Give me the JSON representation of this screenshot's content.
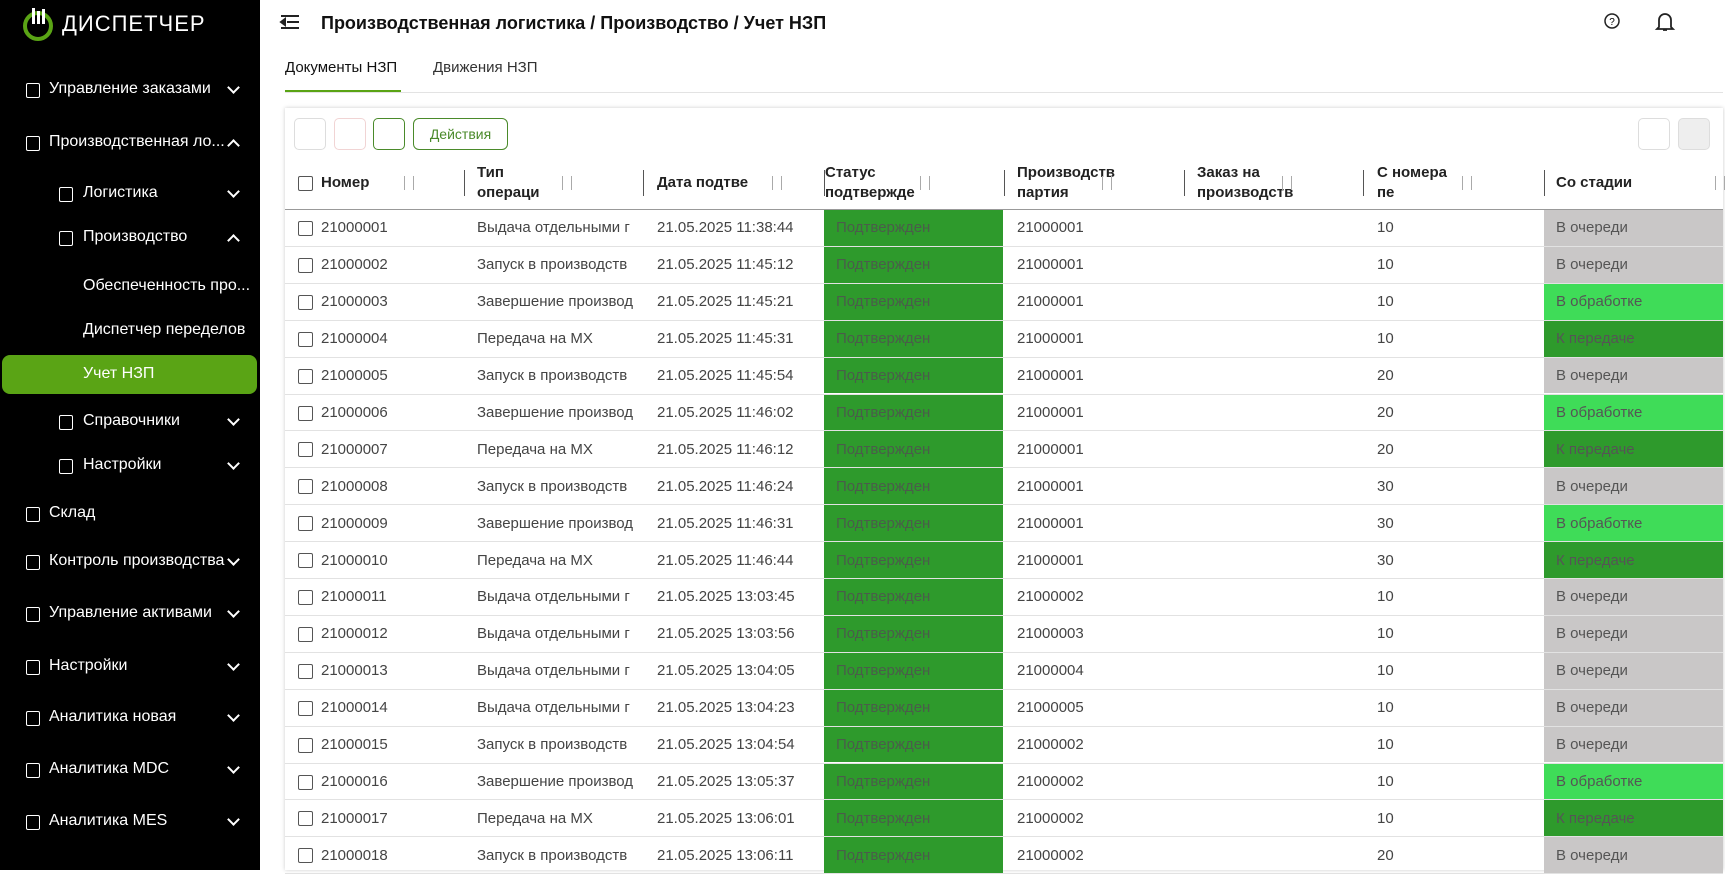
{
  "sidebar": {
    "logo": "ДИСПЕТЧЕР",
    "items": [
      {
        "label": "Управление заказами"
      },
      {
        "label": "Производственная ло..."
      },
      {
        "label": "Логистика"
      },
      {
        "label": "Производство"
      },
      {
        "label": "Обеспеченность про..."
      },
      {
        "label": "Диспетчер переделов"
      },
      {
        "label": "Учет НЗП"
      },
      {
        "label": "Справочники"
      },
      {
        "label": "Настройки"
      },
      {
        "label": "Склад"
      },
      {
        "label": "Контроль производства"
      },
      {
        "label": "Управление активами"
      },
      {
        "label": "Настройки"
      },
      {
        "label": "Аналитика новая"
      },
      {
        "label": "Аналитика MDC"
      },
      {
        "label": "Аналитика MES"
      }
    ]
  },
  "header": {
    "title": "Производственная логистика / Производство / Учет НЗП"
  },
  "tabs": [
    "Документы НЗП",
    "Движения НЗП"
  ],
  "toolbar": {
    "actions": "Действия"
  },
  "table": {
    "columns": [
      "Номер",
      "Тип операци",
      "Дата подтве",
      "Статус подтвержде",
      "Производств партия",
      "Заказ на производств",
      "С номера пе",
      "Со стадии"
    ],
    "rows": [
      {
        "number": "21000001",
        "operation": "Выдача отдельными г",
        "date": "21.05.2025 11:38:44",
        "status": "Подтвержден",
        "batch": "21000001",
        "from_number": "10",
        "stage": "В очереди"
      },
      {
        "number": "21000002",
        "operation": "Запуск в производств",
        "date": "21.05.2025 11:45:12",
        "status": "Подтвержден",
        "batch": "21000001",
        "from_number": "10",
        "stage": "В очереди"
      },
      {
        "number": "21000003",
        "operation": "Завершение производ",
        "date": "21.05.2025 11:45:21",
        "status": "Подтвержден",
        "batch": "21000001",
        "from_number": "10",
        "stage": "В обработке"
      },
      {
        "number": "21000004",
        "operation": "Передача на МХ",
        "date": "21.05.2025 11:45:31",
        "status": "Подтвержден",
        "batch": "21000001",
        "from_number": "10",
        "stage": "К передаче"
      },
      {
        "number": "21000005",
        "operation": "Запуск в производств",
        "date": "21.05.2025 11:45:54",
        "status": "Подтвержден",
        "batch": "21000001",
        "from_number": "20",
        "stage": "В очереди"
      },
      {
        "number": "21000006",
        "operation": "Завершение производ",
        "date": "21.05.2025 11:46:02",
        "status": "Подтвержден",
        "batch": "21000001",
        "from_number": "20",
        "stage": "В обработке"
      },
      {
        "number": "21000007",
        "operation": "Передача на МХ",
        "date": "21.05.2025 11:46:12",
        "status": "Подтвержден",
        "batch": "21000001",
        "from_number": "20",
        "stage": "К передаче"
      },
      {
        "number": "21000008",
        "operation": "Запуск в производств",
        "date": "21.05.2025 11:46:24",
        "status": "Подтвержден",
        "batch": "21000001",
        "from_number": "30",
        "stage": "В очереди"
      },
      {
        "number": "21000009",
        "operation": "Завершение производ",
        "date": "21.05.2025 11:46:31",
        "status": "Подтвержден",
        "batch": "21000001",
        "from_number": "30",
        "stage": "В обработке"
      },
      {
        "number": "21000010",
        "operation": "Передача на МХ",
        "date": "21.05.2025 11:46:44",
        "status": "Подтвержден",
        "batch": "21000001",
        "from_number": "30",
        "stage": "К передаче"
      },
      {
        "number": "21000011",
        "operation": "Выдача отдельными г",
        "date": "21.05.2025 13:03:45",
        "status": "Подтвержден",
        "batch": "21000002",
        "from_number": "10",
        "stage": "В очереди"
      },
      {
        "number": "21000012",
        "operation": "Выдача отдельными г",
        "date": "21.05.2025 13:03:56",
        "status": "Подтвержден",
        "batch": "21000003",
        "from_number": "10",
        "stage": "В очереди"
      },
      {
        "number": "21000013",
        "operation": "Выдача отдельными г",
        "date": "21.05.2025 13:04:05",
        "status": "Подтвержден",
        "batch": "21000004",
        "from_number": "10",
        "stage": "В очереди"
      },
      {
        "number": "21000014",
        "operation": "Выдача отдельными г",
        "date": "21.05.2025 13:04:23",
        "status": "Подтвержден",
        "batch": "21000005",
        "from_number": "10",
        "stage": "В очереди"
      },
      {
        "number": "21000015",
        "operation": "Запуск в производств",
        "date": "21.05.2025 13:04:54",
        "status": "Подтвержден",
        "batch": "21000002",
        "from_number": "10",
        "stage": "В очереди"
      },
      {
        "number": "21000016",
        "operation": "Завершение производ",
        "date": "21.05.2025 13:05:37",
        "status": "Подтвержден",
        "batch": "21000002",
        "from_number": "10",
        "stage": "В обработке"
      },
      {
        "number": "21000017",
        "operation": "Передача на МХ",
        "date": "21.05.2025 13:06:01",
        "status": "Подтвержден",
        "batch": "21000002",
        "from_number": "10",
        "stage": "К передаче"
      },
      {
        "number": "21000018",
        "operation": "Запуск в производств",
        "date": "21.05.2025 13:06:11",
        "status": "Подтвержден",
        "batch": "21000002",
        "from_number": "20",
        "stage": "В очереди"
      }
    ]
  }
}
